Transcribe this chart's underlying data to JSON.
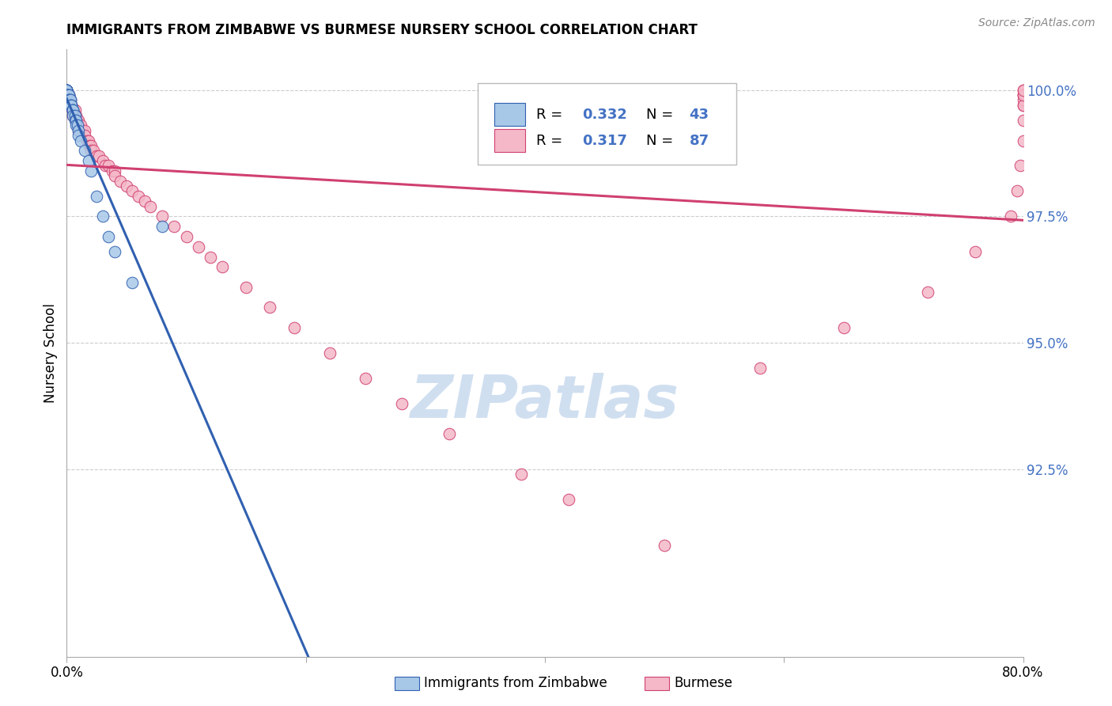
{
  "title": "IMMIGRANTS FROM ZIMBABWE VS BURMESE NURSERY SCHOOL CORRELATION CHART",
  "source": "Source: ZipAtlas.com",
  "ylabel": "Nursery School",
  "ylabel_right_labels": [
    "100.0%",
    "97.5%",
    "95.0%",
    "92.5%"
  ],
  "ylabel_right_values": [
    1.0,
    0.975,
    0.95,
    0.925
  ],
  "xlim": [
    0.0,
    0.8
  ],
  "ylim": [
    0.888,
    1.008
  ],
  "color_zimbabwe": "#a8c8e8",
  "color_burmese": "#f4b8c8",
  "color_line_zimbabwe": "#3060b0",
  "color_line_burmese": "#d04070",
  "watermark_color": "#d0dff0",
  "background_color": "#ffffff",
  "grid_color": "#cccccc",
  "zimbabwe_x": [
    0.0,
    0.0,
    0.0,
    0.0,
    0.0,
    0.0,
    0.0,
    0.0,
    0.0,
    0.0,
    0.0,
    0.0,
    0.002,
    0.002,
    0.002,
    0.002,
    0.002,
    0.003,
    0.003,
    0.003,
    0.004,
    0.004,
    0.005,
    0.005,
    0.005,
    0.005,
    0.007,
    0.007,
    0.008,
    0.008,
    0.009,
    0.01,
    0.01,
    0.012,
    0.015,
    0.018,
    0.02,
    0.025,
    0.03,
    0.035,
    0.04,
    0.055,
    0.08
  ],
  "zimbabwe_y": [
    1.0,
    1.0,
    1.0,
    1.0,
    1.0,
    1.0,
    1.0,
    1.0,
    0.999,
    0.999,
    0.999,
    0.999,
    0.999,
    0.999,
    0.999,
    0.998,
    0.998,
    0.998,
    0.998,
    0.997,
    0.997,
    0.997,
    0.996,
    0.996,
    0.996,
    0.995,
    0.995,
    0.994,
    0.994,
    0.993,
    0.993,
    0.992,
    0.991,
    0.99,
    0.988,
    0.986,
    0.984,
    0.979,
    0.975,
    0.971,
    0.968,
    0.962,
    0.973
  ],
  "burmese_x": [
    0.0,
    0.0,
    0.0,
    0.0,
    0.0,
    0.0,
    0.0,
    0.0,
    0.0,
    0.0,
    0.002,
    0.002,
    0.003,
    0.003,
    0.004,
    0.004,
    0.005,
    0.005,
    0.005,
    0.007,
    0.007,
    0.008,
    0.009,
    0.009,
    0.01,
    0.01,
    0.01,
    0.012,
    0.013,
    0.015,
    0.015,
    0.017,
    0.018,
    0.019,
    0.02,
    0.02,
    0.022,
    0.025,
    0.027,
    0.03,
    0.032,
    0.035,
    0.038,
    0.04,
    0.04,
    0.045,
    0.05,
    0.055,
    0.06,
    0.065,
    0.07,
    0.08,
    0.09,
    0.1,
    0.11,
    0.12,
    0.13,
    0.15,
    0.17,
    0.19,
    0.22,
    0.25,
    0.28,
    0.32,
    0.38,
    0.42,
    0.5,
    0.58,
    0.65,
    0.72,
    0.76,
    0.79,
    0.795,
    0.798,
    0.8,
    0.8,
    0.8,
    0.8,
    0.8,
    0.8,
    0.8,
    0.8,
    0.8,
    0.8
  ],
  "burmese_y": [
    1.0,
    1.0,
    1.0,
    0.999,
    0.999,
    0.999,
    0.998,
    0.998,
    0.997,
    0.997,
    0.999,
    0.998,
    0.998,
    0.997,
    0.997,
    0.997,
    0.996,
    0.996,
    0.995,
    0.996,
    0.995,
    0.995,
    0.994,
    0.993,
    0.994,
    0.993,
    0.992,
    0.993,
    0.992,
    0.992,
    0.991,
    0.99,
    0.99,
    0.989,
    0.989,
    0.988,
    0.988,
    0.987,
    0.987,
    0.986,
    0.985,
    0.985,
    0.984,
    0.984,
    0.983,
    0.982,
    0.981,
    0.98,
    0.979,
    0.978,
    0.977,
    0.975,
    0.973,
    0.971,
    0.969,
    0.967,
    0.965,
    0.961,
    0.957,
    0.953,
    0.948,
    0.943,
    0.938,
    0.932,
    0.924,
    0.919,
    0.91,
    0.945,
    0.953,
    0.96,
    0.968,
    0.975,
    0.98,
    0.985,
    0.99,
    0.994,
    0.997,
    0.999,
    1.0,
    0.999,
    0.998,
    0.997,
    0.999,
    1.0
  ]
}
